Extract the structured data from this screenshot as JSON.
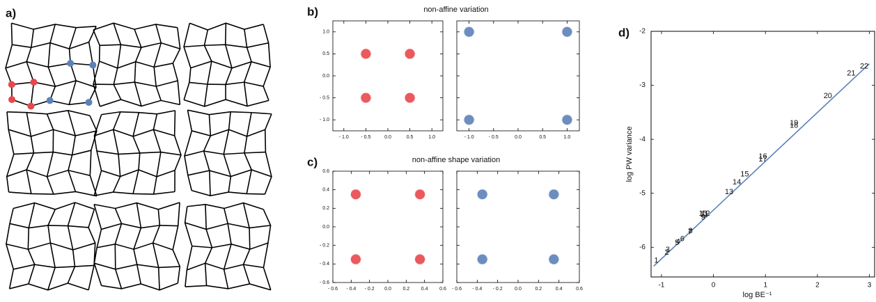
{
  "panel_a": {
    "label": "a)"
  },
  "chart_data": [
    {
      "type": "scatter",
      "panel_label": "b)",
      "title": "non-affine variation",
      "color": "#e8474b",
      "x": [
        -0.5,
        0.5,
        -0.5,
        0.5
      ],
      "y": [
        0.5,
        0.5,
        -0.5,
        -0.5
      ],
      "xlim": [
        -1.25,
        1.25
      ],
      "ylim": [
        -1.25,
        1.25
      ],
      "xticks": [
        {
          "value": -1,
          "label": "- 1.0"
        },
        {
          "value": -0.5,
          "label": "- 0.5"
        },
        {
          "value": 0,
          "label": "0.0"
        },
        0.5,
        {
          "value": 1,
          "label": "1.0"
        }
      ],
      "yticks": [
        {
          "value": -1,
          "label": "- 1.0"
        },
        {
          "value": -0.5,
          "label": "- 0.5"
        },
        {
          "value": 0,
          "label": "0.0"
        },
        0.5,
        {
          "value": 1,
          "label": "1.0"
        }
      ]
    },
    {
      "type": "scatter",
      "color": "#5b82b8",
      "x": [
        -1.0,
        1.0,
        -1.0,
        1.0
      ],
      "y": [
        1.0,
        1.0,
        -1.0,
        -1.0
      ],
      "xlim": [
        -1.25,
        1.25
      ],
      "ylim": [
        -1.25,
        1.25
      ],
      "xticks": [
        {
          "value": -1,
          "label": "- 1.0"
        },
        {
          "value": -0.5,
          "label": "- 0.5"
        },
        {
          "value": 0,
          "label": "0.0"
        },
        0.5,
        {
          "value": 1,
          "label": "1.0"
        }
      ],
      "yticks": []
    },
    {
      "type": "scatter",
      "panel_label": "c)",
      "title": "non-affine shape variation",
      "color": "#e8474b",
      "x": [
        -0.35,
        0.35,
        -0.35,
        0.35
      ],
      "y": [
        0.35,
        0.35,
        -0.35,
        -0.35
      ],
      "xlim": [
        -0.6,
        0.6
      ],
      "ylim": [
        -0.6,
        0.6
      ],
      "xticks": [
        {
          "value": -0.6,
          "label": "- 0.6"
        },
        {
          "value": -0.4,
          "label": "- 0.4"
        },
        {
          "value": -0.2,
          "label": "- 0.2"
        },
        {
          "value": 0,
          "label": "0.0"
        },
        0.2,
        0.4,
        0.6
      ],
      "yticks": [
        {
          "value": -0.6,
          "label": "- 0.6"
        },
        {
          "value": -0.4,
          "label": "- 0.4"
        },
        {
          "value": -0.2,
          "label": "- 0.2"
        },
        {
          "value": 0,
          "label": "0.0"
        },
        0.2,
        0.4,
        0.6
      ]
    },
    {
      "type": "scatter",
      "color": "#5b82b8",
      "x": [
        -0.35,
        0.35,
        -0.35,
        0.35
      ],
      "y": [
        0.35,
        0.35,
        -0.35,
        -0.35
      ],
      "xlim": [
        -0.6,
        0.6
      ],
      "ylim": [
        -0.6,
        0.6
      ],
      "xticks": [
        {
          "value": -0.6,
          "label": "- 0.6"
        },
        {
          "value": -0.4,
          "label": "- 0.4"
        },
        {
          "value": -0.2,
          "label": "- 0.2"
        },
        {
          "value": 0,
          "label": "0.0"
        },
        0.2,
        0.4,
        0.6
      ],
      "yticks": []
    },
    {
      "type": "labeled-scatter",
      "panel_label": "d)",
      "x_label": "log BE⁻¹",
      "y_label": "log PW variance",
      "color": "#5b82b8",
      "labels": [
        1,
        2,
        3,
        4,
        5,
        6,
        7,
        8,
        9,
        10,
        11,
        12,
        13,
        14,
        15,
        16,
        17,
        18,
        19,
        20,
        21,
        22
      ],
      "x": [
        -1.1,
        -0.9,
        -0.88,
        -0.68,
        -0.7,
        -0.6,
        -0.45,
        -0.44,
        -0.2,
        -0.2,
        -0.18,
        -0.15,
        0.3,
        0.45,
        0.6,
        0.95,
        0.95,
        1.55,
        1.55,
        2.2,
        2.65,
        2.9
      ],
      "y": [
        -6.25,
        -6.1,
        -6.05,
        -5.9,
        -5.92,
        -5.85,
        -5.72,
        -5.7,
        -5.45,
        -5.38,
        -5.4,
        -5.38,
        -4.98,
        -4.8,
        -4.65,
        -4.32,
        -4.37,
        -3.75,
        -3.7,
        -3.2,
        -2.78,
        -2.65
      ],
      "fit": {
        "x": [
          -1.15,
          3.0
        ],
        "y": [
          -6.35,
          -2.6
        ]
      },
      "xlim": [
        -1.2,
        3.1
      ],
      "ylim": [
        -6.55,
        -2
      ],
      "xticks": [
        -1,
        0,
        1,
        2,
        3
      ],
      "yticks": [
        -2,
        -3,
        -4,
        -5,
        -6
      ]
    }
  ]
}
